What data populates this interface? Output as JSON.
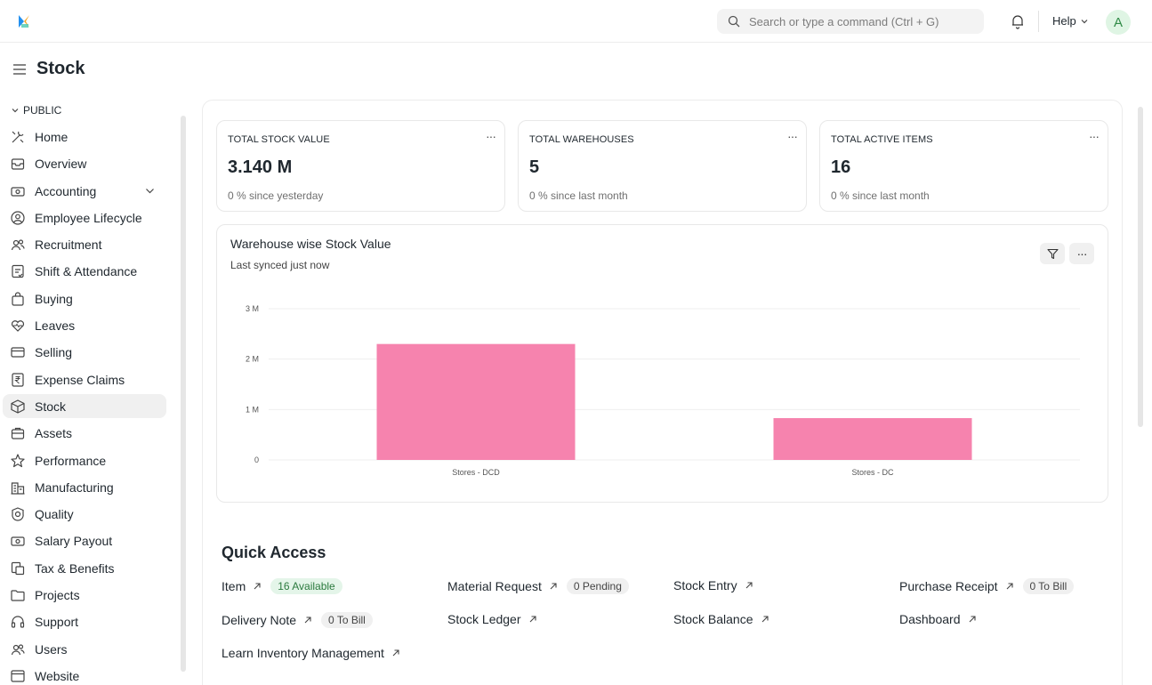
{
  "navbar": {
    "search_placeholder": "Search or type a command (Ctrl + G)",
    "help_label": "Help",
    "avatar_initial": "A"
  },
  "page": {
    "title": "Stock"
  },
  "sidebar": {
    "section": "PUBLIC",
    "items": [
      {
        "label": "Home",
        "icon": "tools-icon"
      },
      {
        "label": "Overview",
        "icon": "inbox-icon"
      },
      {
        "label": "Accounting",
        "icon": "money-icon"
      },
      {
        "label": "Employee Lifecycle",
        "icon": "user-circle-icon"
      },
      {
        "label": "Recruitment",
        "icon": "users-icon"
      },
      {
        "label": "Shift & Attendance",
        "icon": "checklist-icon"
      },
      {
        "label": "Buying",
        "icon": "bag-icon"
      },
      {
        "label": "Leaves",
        "icon": "heartbeat-icon"
      },
      {
        "label": "Selling",
        "icon": "card-icon"
      },
      {
        "label": "Expense Claims",
        "icon": "rupee-icon"
      },
      {
        "label": "Stock",
        "icon": "box-icon"
      },
      {
        "label": "Assets",
        "icon": "briefcase-icon"
      },
      {
        "label": "Performance",
        "icon": "star-icon"
      },
      {
        "label": "Manufacturing",
        "icon": "building-icon"
      },
      {
        "label": "Quality",
        "icon": "badge-icon"
      },
      {
        "label": "Salary Payout",
        "icon": "money-icon"
      },
      {
        "label": "Tax & Benefits",
        "icon": "document-icon"
      },
      {
        "label": "Projects",
        "icon": "folder-icon"
      },
      {
        "label": "Support",
        "icon": "headset-icon"
      },
      {
        "label": "Users",
        "icon": "users-icon"
      },
      {
        "label": "Website",
        "icon": "browser-icon"
      }
    ]
  },
  "cards": [
    {
      "label": "TOTAL STOCK VALUE",
      "value": "3.140 M",
      "sub": "0 % since yesterday"
    },
    {
      "label": "TOTAL WAREHOUSES",
      "value": "5",
      "sub": "0 % since last month"
    },
    {
      "label": "TOTAL ACTIVE ITEMS",
      "value": "16",
      "sub": "0 % since last month"
    }
  ],
  "chart": {
    "title": "Warehouse wise Stock Value",
    "subtitle": "Last synced just now"
  },
  "chart_data": {
    "type": "bar",
    "title": "Warehouse wise Stock Value",
    "categories": [
      "Stores - DCD",
      "Stores - DC"
    ],
    "values": [
      2300000,
      830000
    ],
    "yticks": [
      0,
      1000000,
      2000000,
      3000000
    ],
    "ytick_labels": [
      "0",
      "1 M",
      "2 M",
      "3 M"
    ],
    "ylim": [
      0,
      3000000
    ],
    "color": "#f683ae",
    "grid": true
  },
  "quick_access": {
    "title": "Quick Access",
    "links": [
      {
        "label": "Item",
        "pill": "16 Available",
        "pill_style": "green"
      },
      {
        "label": "Material Request",
        "pill": "0 Pending",
        "pill_style": "gray"
      },
      {
        "label": "Stock Entry",
        "pill": "",
        "pill_style": ""
      },
      {
        "label": "Purchase Receipt",
        "pill": "0 To Bill",
        "pill_style": "gray"
      },
      {
        "label": "Delivery Note",
        "pill": "0 To Bill",
        "pill_style": "gray"
      },
      {
        "label": "Stock Ledger",
        "pill": "",
        "pill_style": ""
      },
      {
        "label": "Stock Balance",
        "pill": "",
        "pill_style": ""
      },
      {
        "label": "Dashboard",
        "pill": "",
        "pill_style": ""
      },
      {
        "label": "Learn Inventory Management",
        "pill": "",
        "pill_style": ""
      }
    ]
  }
}
